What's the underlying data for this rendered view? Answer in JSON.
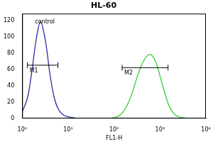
{
  "chart_data": {
    "type": "line",
    "title": "HL-60",
    "x_label": "FL1-H",
    "log": "x",
    "grid": false,
    "xlim": [
      1,
      10000
    ],
    "xticks": [
      {
        "value": 1,
        "label": "10⁰"
      },
      {
        "value": 10,
        "label": "10¹"
      },
      {
        "value": 100,
        "label": "10²"
      },
      {
        "value": 1000,
        "label": "10³"
      },
      {
        "value": 10000,
        "label": "10⁴"
      }
    ],
    "ylim": [
      0,
      128
    ],
    "yticks": [
      0,
      20,
      40,
      60,
      80,
      100,
      120
    ],
    "x": [
      1,
      1.3,
      1.6,
      2,
      2.5,
      3.2,
      4,
      5,
      6.3,
      8,
      10,
      12.6,
      16,
      20,
      25,
      32,
      40,
      50,
      63,
      80,
      100,
      126,
      158,
      200,
      251,
      316,
      398,
      501,
      631,
      794,
      1000,
      1259,
      1585,
      1995,
      2512,
      3162,
      3981,
      5012,
      6310,
      7943,
      10000
    ],
    "series": [
      {
        "color": "#2a2a9a",
        "values": [
          8,
          25,
          55,
          95,
          118,
          95,
          55,
          25,
          10,
          4,
          2,
          1,
          0,
          0,
          0,
          0,
          0,
          0,
          0,
          0,
          0,
          0,
          0,
          0,
          0,
          0,
          0,
          0,
          0,
          0,
          0,
          0,
          0,
          0,
          0,
          0,
          0,
          0,
          0,
          0,
          0
        ]
      },
      {
        "color": "#33cc33",
        "values": [
          0,
          0,
          0,
          0,
          0,
          0,
          0,
          0,
          0,
          0,
          0,
          0,
          0,
          0,
          0,
          0,
          0,
          0,
          0,
          0,
          1,
          3,
          8,
          18,
          32,
          50,
          65,
          75,
          78,
          70,
          52,
          32,
          15,
          6,
          2,
          1,
          0,
          0,
          0,
          0,
          0
        ]
      }
    ],
    "annotations": [
      {
        "text": "control",
        "x": 1.9,
        "y": 118
      },
      {
        "text": "M1",
        "x": [
          1.3,
          6
        ],
        "y": 65
      },
      {
        "text": "M2",
        "x": [
          150,
          1500
        ],
        "y": 62
      }
    ]
  }
}
